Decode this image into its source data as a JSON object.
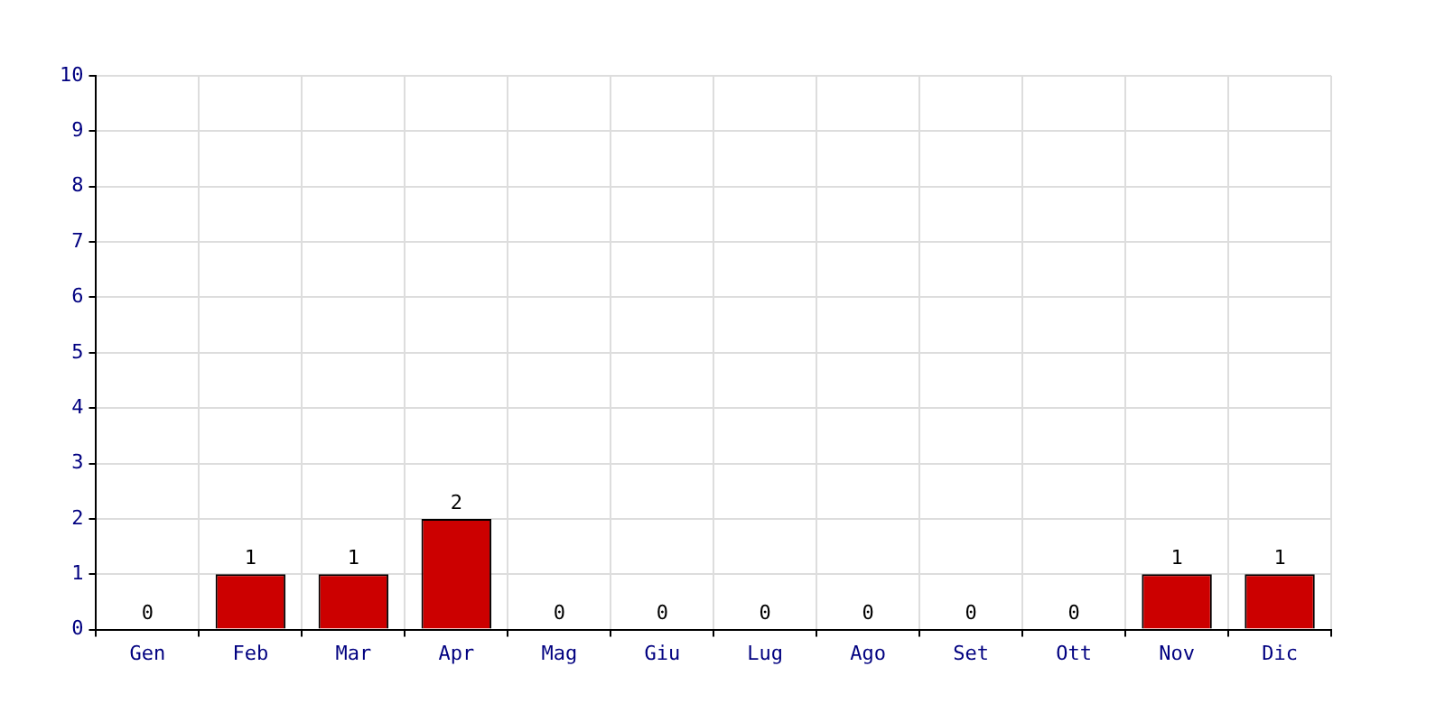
{
  "chart_data": {
    "type": "bar",
    "categories": [
      "Gen",
      "Feb",
      "Mar",
      "Apr",
      "Mag",
      "Giu",
      "Lug",
      "Ago",
      "Set",
      "Ott",
      "Nov",
      "Dic"
    ],
    "values": [
      0,
      1,
      1,
      2,
      0,
      0,
      0,
      0,
      0,
      0,
      1,
      1
    ],
    "color": "#cc0000",
    "ylim": [
      0,
      10
    ],
    "yticks": [
      0,
      1,
      2,
      3,
      4,
      5,
      6,
      7,
      8,
      9,
      10
    ],
    "grid": true,
    "data_labels": true
  }
}
